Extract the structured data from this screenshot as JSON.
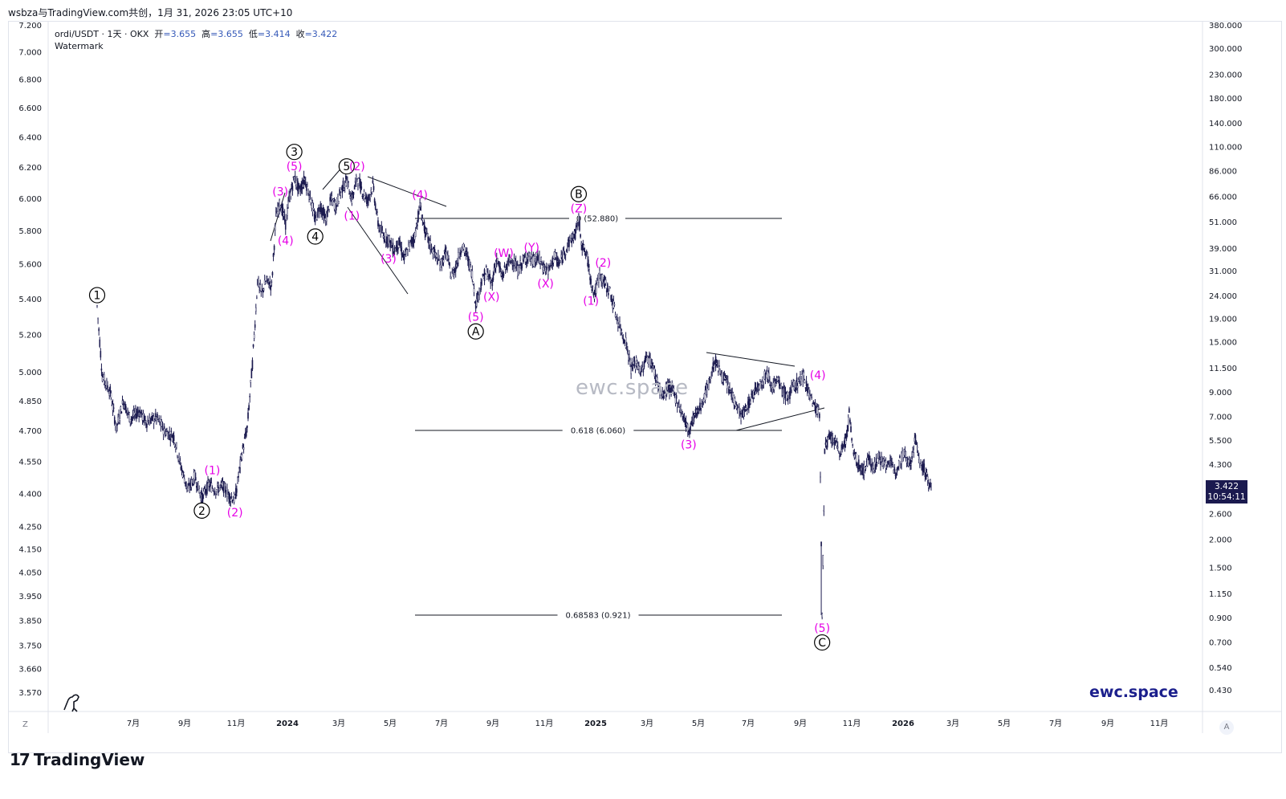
{
  "header": {
    "title": "wsbza与TradingView.com共创，1月 31, 2026 23:05 UTC+10"
  },
  "symbol": {
    "name": "ordi/USDT · 1天 · OKX",
    "open_label": "开",
    "open": "=3.655",
    "high_label": "高",
    "high": "=3.655",
    "low_label": "低",
    "low": "=3.414",
    "close_label": "收",
    "close": "=3.422"
  },
  "watermark_label": "Watermark",
  "center_watermark": "ewc.space",
  "brand": "ewc.space",
  "price_tag": {
    "price": "3.422",
    "countdown": "10:54:11"
  },
  "corners": {
    "left": "Z",
    "right": "A"
  },
  "footer": {
    "logo_mark": "17",
    "logo_text": "TradingView"
  },
  "colors": {
    "candles": "#1b1a4f",
    "wave_primary": "#000000",
    "wave_minor": "#e600e6",
    "brand": "#1b1f8c",
    "price_tag_bg": "#1b1a4f"
  },
  "chart_data": {
    "type": "line",
    "scale": "log",
    "left_axis_ticks": [
      "7.200",
      "7.000",
      "6.800",
      "6.600",
      "6.400",
      "6.200",
      "6.000",
      "5.800",
      "5.600",
      "5.400",
      "5.200",
      "5.000",
      "4.850",
      "4.700",
      "4.550",
      "4.400",
      "4.250",
      "4.150",
      "4.050",
      "3.950",
      "3.850",
      "3.750",
      "3.660",
      "3.570"
    ],
    "right_axis_ticks": [
      "380.000",
      "300.000",
      "230.000",
      "180.000",
      "140.000",
      "110.000",
      "86.000",
      "66.000",
      "51.000",
      "39.000",
      "31.000",
      "24.000",
      "19.000",
      "15.000",
      "11.500",
      "9.000",
      "7.000",
      "5.500",
      "4.300",
      "3.422",
      "2.600",
      "2.000",
      "1.500",
      "1.150",
      "0.900",
      "0.700",
      "0.540",
      "0.430"
    ],
    "x_ticks": [
      "7月",
      "9月",
      "11月",
      "2024",
      "3月",
      "5月",
      "7月",
      "9月",
      "11月",
      "2025",
      "3月",
      "5月",
      "7月",
      "9月",
      "11月",
      "2026",
      "3月",
      "5月",
      "7月",
      "9月",
      "11月"
    ],
    "series": [
      {
        "values": [
          [
            0,
            21.5
          ],
          [
            6,
            10.5
          ],
          [
            15,
            9.0
          ],
          [
            22,
            6.2
          ],
          [
            30,
            8.2
          ],
          [
            38,
            6.8
          ],
          [
            48,
            7.4
          ],
          [
            56,
            6.6
          ],
          [
            68,
            6.9
          ],
          [
            78,
            6.0
          ],
          [
            88,
            5.7
          ],
          [
            96,
            4.2
          ],
          [
            104,
            3.3
          ],
          [
            112,
            3.8
          ],
          [
            120,
            3.05
          ],
          [
            128,
            3.5
          ],
          [
            136,
            3.3
          ],
          [
            144,
            3.45
          ],
          [
            152,
            3.1
          ],
          [
            158,
            3.0
          ],
          [
            166,
            4.8
          ],
          [
            172,
            6.2
          ],
          [
            178,
            12.0
          ],
          [
            184,
            28.0
          ],
          [
            188,
            24.5
          ],
          [
            194,
            28.0
          ],
          [
            200,
            26.5
          ],
          [
            205,
            54.0
          ],
          [
            210,
            62.0
          ],
          [
            216,
            50.0
          ],
          [
            220,
            64.0
          ],
          [
            226,
            80.0
          ],
          [
            232,
            70.0
          ],
          [
            238,
            79.0
          ],
          [
            244,
            66.0
          ],
          [
            250,
            52.0
          ],
          [
            256,
            60.0
          ],
          [
            262,
            52.0
          ],
          [
            268,
            64.0
          ],
          [
            274,
            60.0
          ],
          [
            280,
            71.0
          ],
          [
            286,
            78.0
          ],
          [
            292,
            64.0
          ],
          [
            298,
            80.0
          ],
          [
            304,
            70.0
          ],
          [
            310,
            63.0
          ],
          [
            316,
            74.0
          ],
          [
            322,
            50.0
          ],
          [
            328,
            44.0
          ],
          [
            334,
            43.0
          ],
          [
            340,
            38.0
          ],
          [
            346,
            41.0
          ],
          [
            352,
            35.0
          ],
          [
            358,
            40.0
          ],
          [
            364,
            44.0
          ],
          [
            370,
            60.0
          ],
          [
            376,
            46.0
          ],
          [
            382,
            40.0
          ],
          [
            388,
            36.0
          ],
          [
            394,
            33.0
          ],
          [
            400,
            38.0
          ],
          [
            406,
            29.0
          ],
          [
            412,
            33.0
          ],
          [
            418,
            40.0
          ],
          [
            424,
            36.0
          ],
          [
            430,
            30.0
          ],
          [
            434,
            22.0
          ],
          [
            440,
            27.0
          ],
          [
            446,
            31.0
          ],
          [
            452,
            27.0
          ],
          [
            458,
            35.0
          ],
          [
            464,
            29.0
          ],
          [
            470,
            33.0
          ],
          [
            476,
            35.0
          ],
          [
            482,
            31.0
          ],
          [
            488,
            34.0
          ],
          [
            494,
            36.0
          ],
          [
            500,
            34.0
          ],
          [
            506,
            35.0
          ],
          [
            512,
            32.0
          ],
          [
            518,
            31.0
          ],
          [
            524,
            36.0
          ],
          [
            530,
            33.0
          ],
          [
            536,
            38.0
          ],
          [
            542,
            42.0
          ],
          [
            548,
            45.0
          ],
          [
            552,
            52.0
          ],
          [
            556,
            40.0
          ],
          [
            562,
            35.0
          ],
          [
            566,
            28.0
          ],
          [
            570,
            24.0
          ],
          [
            576,
            30.0
          ],
          [
            582,
            27.0
          ],
          [
            588,
            25.0
          ],
          [
            594,
            20.0
          ],
          [
            600,
            17.0
          ],
          [
            606,
            15.0
          ],
          [
            612,
            11.5
          ],
          [
            618,
            12.0
          ],
          [
            624,
            11.0
          ],
          [
            630,
            13.0
          ],
          [
            636,
            12.0
          ],
          [
            642,
            10.0
          ],
          [
            648,
            8.5
          ],
          [
            654,
            9.5
          ],
          [
            660,
            9.0
          ],
          [
            666,
            8.0
          ],
          [
            672,
            7.0
          ],
          [
            678,
            6.0
          ],
          [
            684,
            7.0
          ],
          [
            690,
            7.5
          ],
          [
            696,
            8.5
          ],
          [
            702,
            10.0
          ],
          [
            708,
            12.5
          ],
          [
            714,
            11.0
          ],
          [
            720,
            10.0
          ],
          [
            726,
            9.0
          ],
          [
            732,
            8.0
          ],
          [
            738,
            7.0
          ],
          [
            744,
            7.5
          ],
          [
            750,
            8.5
          ],
          [
            756,
            9.5
          ],
          [
            762,
            10.0
          ],
          [
            768,
            11.0
          ],
          [
            774,
            9.5
          ],
          [
            780,
            10.0
          ],
          [
            786,
            9.0
          ],
          [
            792,
            8.5
          ],
          [
            798,
            9.5
          ],
          [
            804,
            10.0
          ],
          [
            810,
            10.5
          ],
          [
            816,
            9.0
          ],
          [
            822,
            7.8
          ],
          [
            828,
            7.3
          ],
          [
            831,
            0.921
          ],
          [
            834,
            5.0
          ],
          [
            840,
            5.7
          ],
          [
            846,
            5.3
          ],
          [
            852,
            4.8
          ],
          [
            858,
            5.5
          ],
          [
            862,
            7.2
          ],
          [
            866,
            5.0
          ],
          [
            872,
            4.3
          ],
          [
            878,
            4.0
          ],
          [
            884,
            4.5
          ],
          [
            890,
            4.2
          ],
          [
            896,
            4.6
          ],
          [
            902,
            4.3
          ],
          [
            908,
            4.4
          ],
          [
            914,
            4.0
          ],
          [
            920,
            4.5
          ],
          [
            926,
            4.8
          ],
          [
            932,
            4.3
          ],
          [
            938,
            5.6
          ],
          [
            942,
            4.5
          ],
          [
            948,
            4.1
          ],
          [
            952,
            3.655
          ],
          [
            956,
            3.422
          ]
        ]
      }
    ],
    "fib_levels": [
      {
        "label": "0 (52.880)",
        "ratio": 0,
        "price": 52.88
      },
      {
        "label": "0.618 (6.060)",
        "ratio": 0.618,
        "price": 6.06
      },
      {
        "label": "0.68583 (0.921)",
        "ratio": 0.68583,
        "price": 0.921
      }
    ],
    "wave_labels_primary": [
      "1",
      "2",
      "3",
      "4",
      "5",
      "A",
      "B",
      "C"
    ],
    "wave_labels_minor": [
      "(1)",
      "(2)",
      "(3)",
      "(4)",
      "(5)",
      "(W)",
      "(X)",
      "(Y)",
      "(Z)"
    ],
    "annotations": [
      {
        "text": "1",
        "style": "primary",
        "t": 0,
        "price": 21.5,
        "pos": "above"
      },
      {
        "text": "2",
        "style": "primary",
        "t": 120,
        "price": 3.05,
        "pos": "below"
      },
      {
        "text": "(1)",
        "style": "minor",
        "t": 132,
        "price": 3.6,
        "pos": "above"
      },
      {
        "text": "(2)",
        "style": "minor",
        "t": 158,
        "price": 3.0,
        "pos": "below"
      },
      {
        "text": "(3)",
        "style": "minor",
        "t": 210,
        "price": 62.0,
        "pos": "above"
      },
      {
        "text": "(4)",
        "style": "minor",
        "t": 216,
        "price": 48.0,
        "pos": "below"
      },
      {
        "text": "(5)",
        "style": "minor",
        "t": 226,
        "price": 80.0,
        "pos": "above"
      },
      {
        "text": "3",
        "style": "primary",
        "t": 226,
        "price": 80.0,
        "pos": "above2"
      },
      {
        "text": "4",
        "style": "primary",
        "t": 250,
        "price": 50.0,
        "pos": "below"
      },
      {
        "text": "5",
        "style": "primary",
        "t": 286,
        "price": 80.0,
        "pos": "above"
      },
      {
        "text": "(1)",
        "style": "minor",
        "t": 292,
        "price": 62.0,
        "pos": "below"
      },
      {
        "text": "(2)",
        "style": "minor",
        "t": 298,
        "price": 80.0,
        "pos": "above"
      },
      {
        "text": "(3)",
        "style": "minor",
        "t": 334,
        "price": 40.0,
        "pos": "below"
      },
      {
        "text": "(4)",
        "style": "minor",
        "t": 370,
        "price": 60.0,
        "pos": "above"
      },
      {
        "text": "(5)",
        "style": "minor",
        "t": 434,
        "price": 22.0,
        "pos": "below"
      },
      {
        "text": "A",
        "style": "primary",
        "t": 434,
        "price": 22.0,
        "pos": "below2"
      },
      {
        "text": "(X)",
        "style": "minor",
        "t": 452,
        "price": 27.0,
        "pos": "below"
      },
      {
        "text": "(W)",
        "style": "minor",
        "t": 466,
        "price": 33.0,
        "pos": "above"
      },
      {
        "text": "(Y)",
        "style": "minor",
        "t": 498,
        "price": 35.0,
        "pos": "above"
      },
      {
        "text": "(X)",
        "style": "minor",
        "t": 514,
        "price": 31.0,
        "pos": "below"
      },
      {
        "text": "(Z)",
        "style": "minor",
        "t": 552,
        "price": 52.0,
        "pos": "above"
      },
      {
        "text": "B",
        "style": "primary",
        "t": 552,
        "price": 52.0,
        "pos": "above2"
      },
      {
        "text": "(1)",
        "style": "minor",
        "t": 566,
        "price": 26.0,
        "pos": "below"
      },
      {
        "text": "(2)",
        "style": "minor",
        "t": 580,
        "price": 30.0,
        "pos": "above"
      },
      {
        "text": "(3)",
        "style": "minor",
        "t": 678,
        "price": 6.0,
        "pos": "below"
      },
      {
        "text": "(4)",
        "style": "minor",
        "t": 826,
        "price": 9.5,
        "pos": "above"
      },
      {
        "text": "(5)",
        "style": "minor",
        "t": 831,
        "price": 0.921,
        "pos": "below"
      },
      {
        "text": "C",
        "style": "primary",
        "t": 831,
        "price": 0.921,
        "pos": "below2"
      }
    ]
  }
}
